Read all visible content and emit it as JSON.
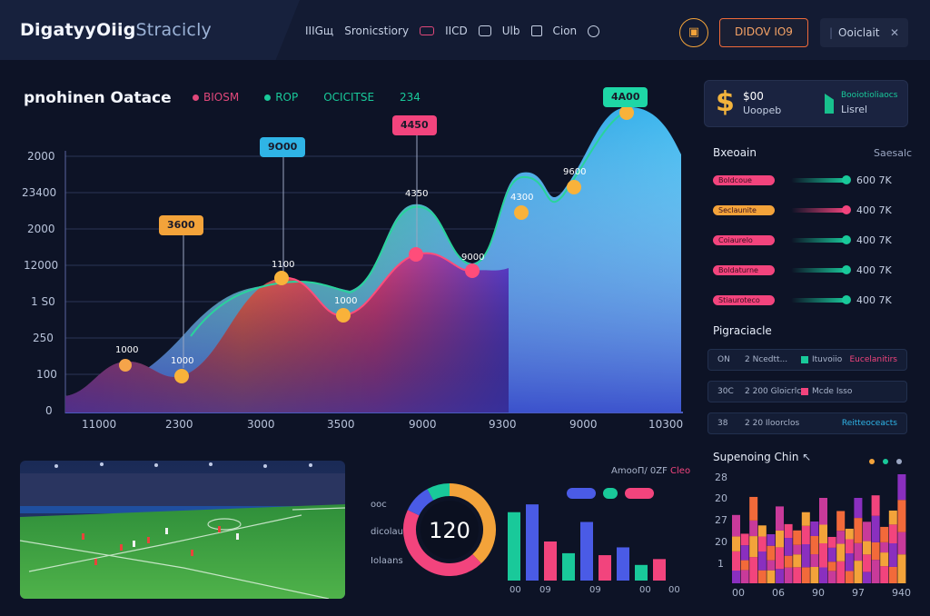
{
  "topbar": {
    "brand_main": "DigatyyOiig",
    "brand_sub": "Stracicly",
    "nav": [
      "IIIGщ",
      "Sronicstiory",
      "IICD",
      "Ulb",
      "Cion"
    ],
    "wallet_icon": "wallet-icon",
    "promo_label": "DIDOV IO9",
    "account_label": "Ooiclait"
  },
  "chart": {
    "title": "pnohinen Oatace",
    "legend": [
      {
        "label": "BIOSM",
        "color": "#e0487a"
      },
      {
        "label": "ROP",
        "color": "#19c99a"
      },
      {
        "label": "OCICITSE",
        "color": "#19c99a"
      },
      {
        "label": "234",
        "color": "#19c99a"
      }
    ],
    "y_ticks": [
      "2000",
      "23400",
      "2000",
      "12000",
      "1 S0",
      "250",
      "100",
      "0"
    ],
    "x_ticks": [
      "11000",
      "2300",
      "3000",
      "3500",
      "9000",
      "9300",
      "9000",
      "10300"
    ],
    "tags": [
      {
        "label": "3600",
        "color": "#f3a33a"
      },
      {
        "label": "9O00",
        "color": "#2fb4e6"
      },
      {
        "label": "4450",
        "color": "#f2447d"
      },
      {
        "label": "4A00",
        "color": "#1ed7a6"
      }
    ],
    "point_labels": [
      "1000",
      "1000",
      "1100",
      "1000",
      "4350",
      "9000",
      "4300",
      "9600"
    ]
  },
  "chart_data": {
    "type": "area",
    "x": [
      "11000",
      "2300",
      "3000",
      "3500",
      "9000",
      "9300",
      "9000",
      "10300"
    ],
    "series": [
      {
        "color": "#e0487a",
        "values": [
          300,
          500,
          900,
          1300,
          1800,
          1900,
          2000,
          2200
        ]
      },
      {
        "color": "#19c99a",
        "values": [
          600,
          1100,
          1500,
          1600,
          2400,
          2000,
          2800,
          3600
        ]
      }
    ],
    "ylim": [
      0,
      3600
    ],
    "grid": true
  },
  "right_panel": {
    "balance": {
      "symbol": "$",
      "amount": "$00",
      "sub": "Uoopeb",
      "b2_title": "Booiotioliaocs",
      "b2_value": "Lisrel"
    },
    "stats_title": "Bxeoain",
    "stats_aside": "Saesalc",
    "stats": [
      {
        "pill": "Boldcoue",
        "pill_color": "#f2447d",
        "track": "#19c99a",
        "value": "600 7K"
      },
      {
        "pill": "Seclaunite",
        "pill_color": "#f3a33a",
        "track": "#f2447d",
        "value": "400 7K"
      },
      {
        "pill": "Coiaurelo",
        "pill_color": "#f2447d",
        "track": "#19c99a",
        "value": "400 7K"
      },
      {
        "pill": "Boldaturne",
        "pill_color": "#f2447d",
        "track": "#19c99a",
        "value": "400 7K"
      },
      {
        "pill": "Stiauroteco",
        "pill_color": "#f2447d",
        "track": "#19c99a",
        "value": "400 7K"
      }
    ],
    "matches_title": "Pigraciacle",
    "matches": [
      {
        "a": "ON",
        "b": "2 Ncedtt...",
        "sq": "#19c99a",
        "c": "Ituvoiio",
        "d": "Eucelanitirs",
        "d_color": "#f2447d"
      },
      {
        "a": "30C",
        "b": "2 200 Gloicrlc",
        "sq": "#f2447d",
        "c": "Mcde Isso",
        "d": "",
        "d_color": "#aab5cc"
      },
      {
        "a": "38",
        "b": "2 20 Iloorclos",
        "sq": "",
        "c": "",
        "d": "Reitteoceacts",
        "d_color": "#2fb4e6"
      }
    ]
  },
  "donut": {
    "center": "120",
    "labels": [
      "ooc",
      "dicolaus",
      "Iolaans"
    ],
    "segments": [
      {
        "color": "#f3a33a",
        "value": 38
      },
      {
        "color": "#f2447d",
        "value": 44
      },
      {
        "color": "#4a5be6",
        "value": 10
      },
      {
        "color": "#19c99a",
        "value": 8
      }
    ]
  },
  "mini_bars": {
    "header": "AmooП/ 0ZF",
    "header_accent": "Cleo",
    "legend": [
      "#4a5be6",
      "#19c99a",
      "#f2447d"
    ],
    "x_labels": [
      "00",
      "09",
      "09",
      "00",
      "00"
    ],
    "bars": [
      {
        "color": "#19c99a",
        "value": 70
      },
      {
        "color": "#4a5be6",
        "value": 78
      },
      {
        "color": "#f2447d",
        "value": 40
      },
      {
        "color": "#19c99a",
        "value": 28
      },
      {
        "color": "#4a5be6",
        "value": 60
      },
      {
        "color": "#f2447d",
        "value": 26
      },
      {
        "color": "#4a5be6",
        "value": 34
      },
      {
        "color": "#19c99a",
        "value": 16
      },
      {
        "color": "#f2447d",
        "value": 22
      }
    ]
  },
  "heatmap": {
    "title": "Supenoing Chin",
    "y_labels": [
      "28",
      "20",
      "27",
      "20",
      "1"
    ],
    "x_labels": [
      "00",
      "06",
      "90",
      "97",
      "940"
    ]
  }
}
